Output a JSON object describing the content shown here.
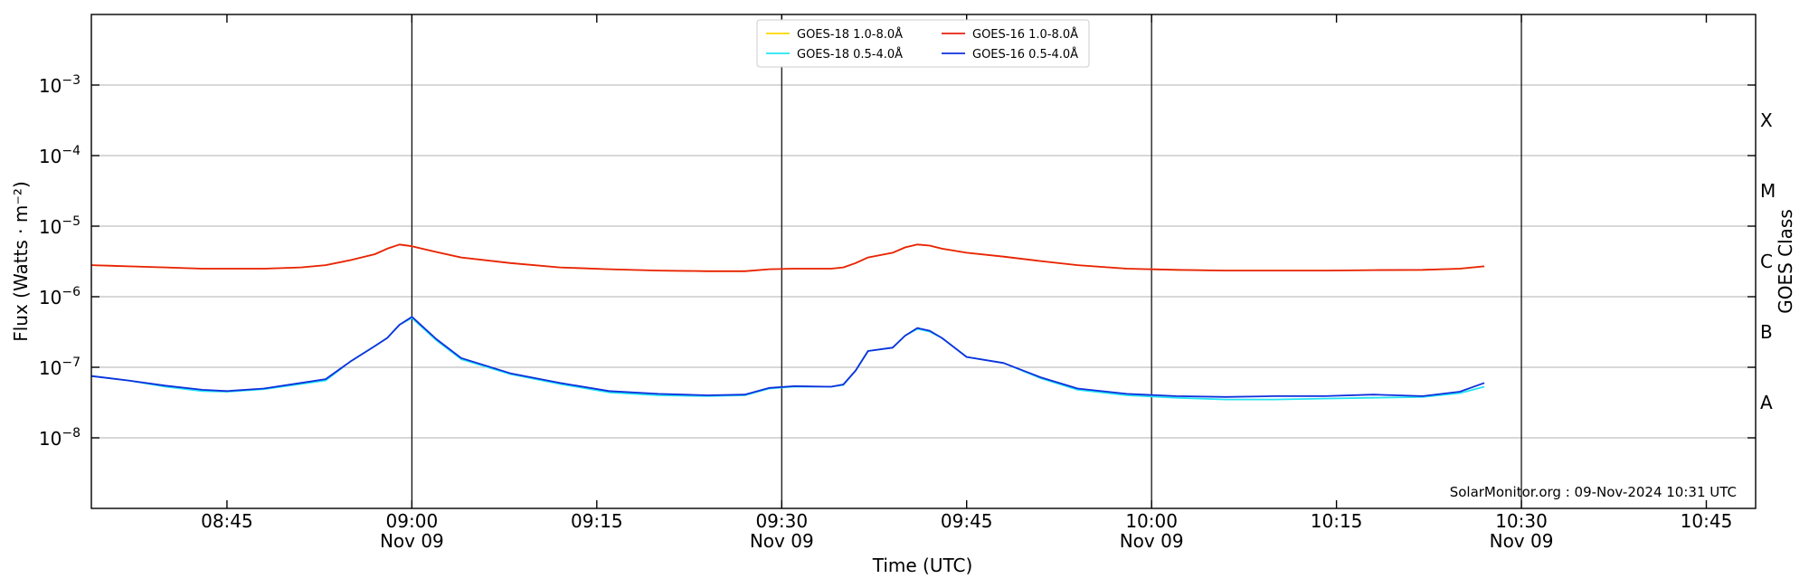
{
  "chart_data": {
    "type": "line",
    "title": "",
    "xlabel": "Time (UTC)",
    "ylabel": "Flux (Watts · m⁻²)",
    "right_axis_label": "GOES Class",
    "x_scale": "time",
    "y_scale": "log",
    "xlim": [
      "2024-11-09 08:34",
      "2024-11-09 10:49"
    ],
    "ylim": [
      1e-09,
      0.01
    ],
    "grid": "horizontal",
    "legend_placement": "top-center",
    "x_ticks": [
      {
        "t": "2024-11-09 08:45",
        "label": "08:45",
        "sublabel": ""
      },
      {
        "t": "2024-11-09 09:00",
        "label": "09:00",
        "sublabel": "Nov 09"
      },
      {
        "t": "2024-11-09 09:15",
        "label": "09:15",
        "sublabel": ""
      },
      {
        "t": "2024-11-09 09:30",
        "label": "09:30",
        "sublabel": "Nov 09"
      },
      {
        "t": "2024-11-09 09:45",
        "label": "09:45",
        "sublabel": ""
      },
      {
        "t": "2024-11-09 10:00",
        "label": "10:00",
        "sublabel": "Nov 09"
      },
      {
        "t": "2024-11-09 10:15",
        "label": "10:15",
        "sublabel": ""
      },
      {
        "t": "2024-11-09 10:30",
        "label": "10:30",
        "sublabel": "Nov 09"
      },
      {
        "t": "2024-11-09 10:45",
        "label": "10:45",
        "sublabel": ""
      }
    ],
    "vertical_lines": [
      "2024-11-09 09:00",
      "2024-11-09 09:30",
      "2024-11-09 10:00",
      "2024-11-09 10:30"
    ],
    "y_ticks": [
      {
        "value": 1e-08,
        "base": "10",
        "exp": "−8"
      },
      {
        "value": 1e-07,
        "base": "10",
        "exp": "−7"
      },
      {
        "value": 1e-06,
        "base": "10",
        "exp": "−6"
      },
      {
        "value": 1e-05,
        "base": "10",
        "exp": "−5"
      },
      {
        "value": 0.0001,
        "base": "10",
        "exp": "−4"
      },
      {
        "value": 0.001,
        "base": "10",
        "exp": "−3"
      }
    ],
    "goes_classes": [
      {
        "label": "A",
        "value": 3.16e-08
      },
      {
        "label": "B",
        "value": 3.16e-07
      },
      {
        "label": "C",
        "value": 3.16e-06
      },
      {
        "label": "M",
        "value": 3.16e-05
      },
      {
        "label": "X",
        "value": 0.000316
      }
    ],
    "x": [
      "2024-11-09 08:34",
      "2024-11-09 08:37",
      "2024-11-09 08:40",
      "2024-11-09 08:43",
      "2024-11-09 08:45",
      "2024-11-09 08:48",
      "2024-11-09 08:51",
      "2024-11-09 08:53",
      "2024-11-09 08:55",
      "2024-11-09 08:57",
      "2024-11-09 08:58",
      "2024-11-09 08:59",
      "2024-11-09 09:00",
      "2024-11-09 09:02",
      "2024-11-09 09:04",
      "2024-11-09 09:08",
      "2024-11-09 09:12",
      "2024-11-09 09:16",
      "2024-11-09 09:20",
      "2024-11-09 09:24",
      "2024-11-09 09:27",
      "2024-11-09 09:29",
      "2024-11-09 09:31",
      "2024-11-09 09:34",
      "2024-11-09 09:35",
      "2024-11-09 09:36",
      "2024-11-09 09:37",
      "2024-11-09 09:39",
      "2024-11-09 09:40",
      "2024-11-09 09:41",
      "2024-11-09 09:42",
      "2024-11-09 09:43",
      "2024-11-09 09:45",
      "2024-11-09 09:48",
      "2024-11-09 09:51",
      "2024-11-09 09:54",
      "2024-11-09 09:58",
      "2024-11-09 10:02",
      "2024-11-09 10:06",
      "2024-11-09 10:10",
      "2024-11-09 10:14",
      "2024-11-09 10:18",
      "2024-11-09 10:22",
      "2024-11-09 10:25",
      "2024-11-09 10:27"
    ],
    "series": [
      {
        "name": "GOES-18 1.0-8.0Å",
        "color": "#ffd700",
        "values": [
          2.8e-06,
          2.7e-06,
          2.6e-06,
          2.5e-06,
          2.5e-06,
          2.5e-06,
          2.6e-06,
          2.8e-06,
          3.3e-06,
          4e-06,
          4.8e-06,
          5.5e-06,
          5.2e-06,
          4.3e-06,
          3.6e-06,
          3e-06,
          2.6e-06,
          2.45e-06,
          2.35e-06,
          2.3e-06,
          2.3e-06,
          2.45e-06,
          2.5e-06,
          2.5e-06,
          2.6e-06,
          3e-06,
          3.6e-06,
          4.2e-06,
          5e-06,
          5.5e-06,
          5.3e-06,
          4.8e-06,
          4.2e-06,
          3.7e-06,
          3.2e-06,
          2.8e-06,
          2.5e-06,
          2.4e-06,
          2.35e-06,
          2.35e-06,
          2.35e-06,
          2.38e-06,
          2.4e-06,
          2.5e-06,
          2.7e-06
        ]
      },
      {
        "name": "GOES-16 1.0-8.0Å",
        "color": "#e8210f",
        "values": [
          2.8e-06,
          2.7e-06,
          2.6e-06,
          2.5e-06,
          2.5e-06,
          2.5e-06,
          2.6e-06,
          2.8e-06,
          3.3e-06,
          4e-06,
          4.8e-06,
          5.5e-06,
          5.2e-06,
          4.3e-06,
          3.6e-06,
          3e-06,
          2.6e-06,
          2.45e-06,
          2.35e-06,
          2.3e-06,
          2.3e-06,
          2.45e-06,
          2.5e-06,
          2.5e-06,
          2.6e-06,
          3e-06,
          3.6e-06,
          4.2e-06,
          5e-06,
          5.5e-06,
          5.3e-06,
          4.8e-06,
          4.2e-06,
          3.7e-06,
          3.2e-06,
          2.8e-06,
          2.5e-06,
          2.4e-06,
          2.35e-06,
          2.35e-06,
          2.35e-06,
          2.38e-06,
          2.4e-06,
          2.5e-06,
          2.7e-06
        ]
      },
      {
        "name": "GOES-18 0.5-4.0Å",
        "color": "#22e5f2",
        "values": [
          7.5e-08,
          6.5e-08,
          5.3e-08,
          4.6e-08,
          4.5e-08,
          4.9e-08,
          5.8e-08,
          6.5e-08,
          1.2e-07,
          2e-07,
          2.6e-07,
          4e-07,
          5e-07,
          2.4e-07,
          1.3e-07,
          8e-08,
          5.8e-08,
          4.4e-08,
          4e-08,
          3.9e-08,
          4e-08,
          5e-08,
          5.3e-08,
          5.3e-08,
          5.6e-08,
          9e-08,
          1.7e-07,
          1.9e-07,
          2.8e-07,
          3.5e-07,
          3.2e-07,
          2.6e-07,
          1.4e-07,
          1.15e-07,
          7e-08,
          4.8e-08,
          4e-08,
          3.7e-08,
          3.5e-08,
          3.5e-08,
          3.6e-08,
          3.7e-08,
          3.8e-08,
          4.3e-08,
          5.3e-08
        ]
      },
      {
        "name": "GOES-16 0.5-4.0Å",
        "color": "#1030dd",
        "values": [
          7.5e-08,
          6.5e-08,
          5.5e-08,
          4.8e-08,
          4.6e-08,
          5e-08,
          6e-08,
          6.8e-08,
          1.2e-07,
          2e-07,
          2.6e-07,
          4e-07,
          5.2e-07,
          2.5e-07,
          1.35e-07,
          8.2e-08,
          6e-08,
          4.6e-08,
          4.2e-08,
          4e-08,
          4.1e-08,
          5.1e-08,
          5.4e-08,
          5.3e-08,
          5.7e-08,
          9e-08,
          1.7e-07,
          1.9e-07,
          2.8e-07,
          3.6e-07,
          3.3e-07,
          2.6e-07,
          1.4e-07,
          1.15e-07,
          7.2e-08,
          5e-08,
          4.2e-08,
          3.9e-08,
          3.8e-08,
          3.9e-08,
          3.9e-08,
          4.1e-08,
          3.9e-08,
          4.5e-08,
          6e-08
        ]
      }
    ],
    "footer": "SolarMonitor.org : 09-Nov-2024 10:31 UTC"
  }
}
